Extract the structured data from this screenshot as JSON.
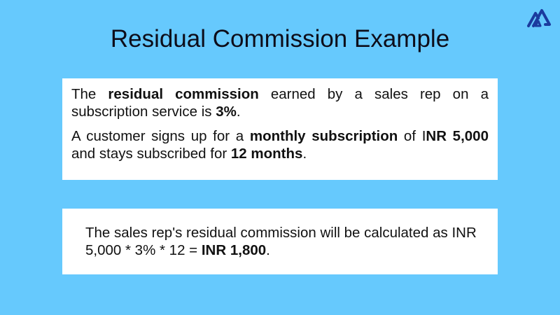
{
  "title": "Residual Commission Example",
  "logo": {
    "icon": "mountain-logo-icon",
    "color": "#1b3b9e"
  },
  "box1": {
    "p1": [
      "The ",
      "residual commission",
      " earned by a sales rep on a subscription service is ",
      "3%",
      "."
    ],
    "p2": [
      "A customer signs up for a ",
      "monthly subscription",
      " of I",
      "NR 5,000",
      " and stays subscribed for ",
      "12 months",
      "."
    ]
  },
  "box2": {
    "text": [
      "The sales rep's residual commission will be calculated as INR 5,000 * 3% * 12 = ",
      "INR 1,800",
      "."
    ]
  },
  "colors": {
    "background": "#66c9fd",
    "panel": "#ffffff"
  }
}
